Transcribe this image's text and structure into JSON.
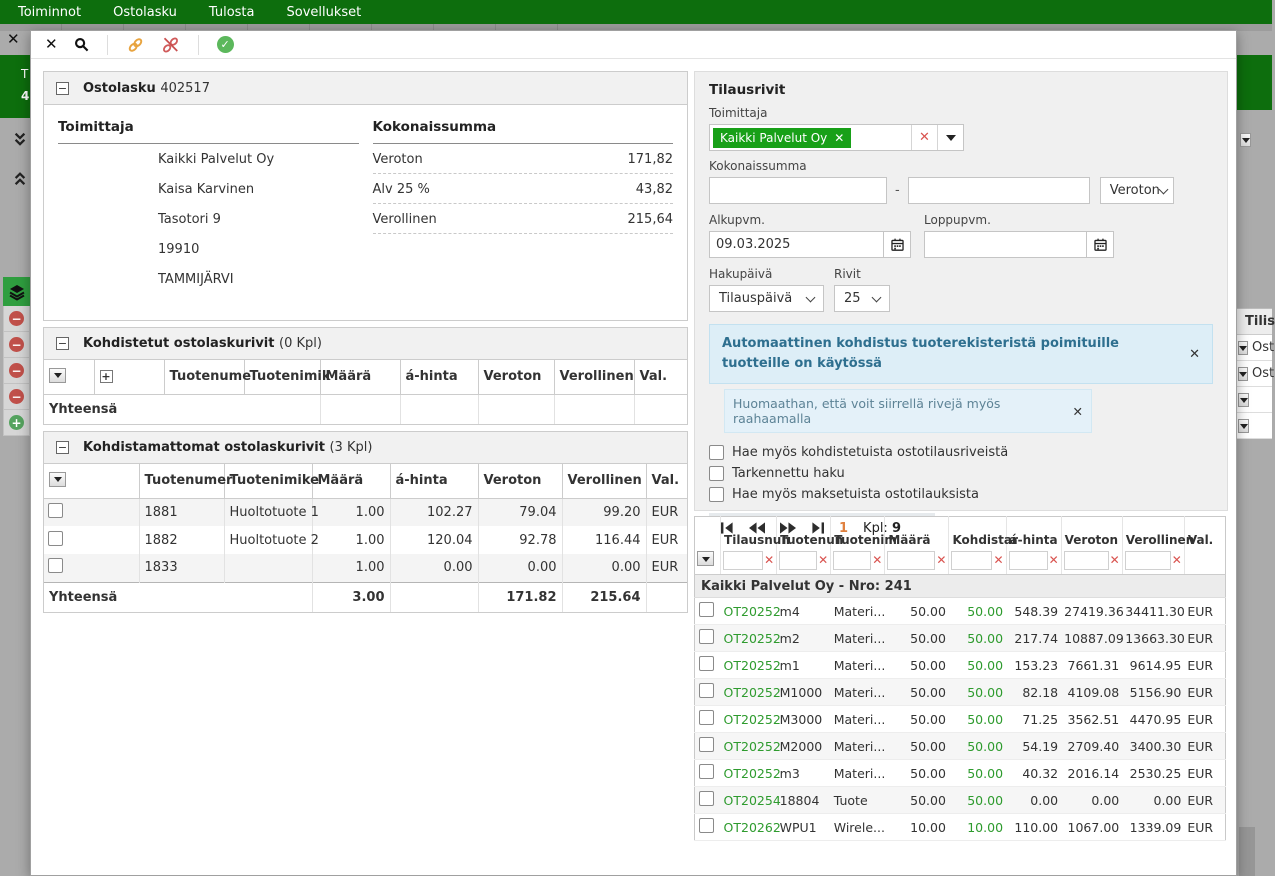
{
  "menubar": {
    "items": [
      "Toiminnot",
      "Ostolasku",
      "Tulosta",
      "Sovellukset"
    ]
  },
  "background": {
    "left_green_text": [
      "T",
      "4"
    ],
    "right_fragment": {
      "header": "Tilis",
      "rows": [
        "Ost",
        "Ost",
        "",
        ""
      ]
    }
  },
  "invoice": {
    "title": "Ostolasku",
    "number": "402517",
    "supplier_title": "Toimittaja",
    "supplier_lines": [
      "Kaikki Palvelut Oy",
      "Kaisa Karvinen",
      "Tasotori 9",
      "19910",
      "TAMMIJÄRVI"
    ],
    "totals_title": "Kokonaissumma",
    "totals": [
      {
        "label": "Veroton",
        "value": "171,82"
      },
      {
        "label": "Alv 25 %",
        "value": "43,82"
      },
      {
        "label": "Verollinen",
        "value": "215,64"
      }
    ]
  },
  "matched": {
    "title": "Kohdistetut ostolaskurivit",
    "count": "(0 Kpl)",
    "columns": [
      "Tuotenume",
      "Tuotenimik",
      "Määrä",
      "á-hinta",
      "Veroton",
      "Verollinen",
      "Val."
    ],
    "total_label": "Yhteensä"
  },
  "unmatched": {
    "title": "Kohdistamattomat ostolaskurivit",
    "count": "(3 Kpl)",
    "columns": [
      "Tuotenumer",
      "Tuotenimike",
      "Määrä",
      "á-hinta",
      "Veroton",
      "Verollinen",
      "Val."
    ],
    "rows": [
      [
        "1881",
        "Huoltotuote 1",
        "1.00",
        "102.27",
        "79.04",
        "99.20",
        "EUR"
      ],
      [
        "1882",
        "Huoltotuote 2",
        "1.00",
        "120.04",
        "92.78",
        "116.44",
        "EUR"
      ],
      [
        "1833",
        "",
        "1.00",
        "0.00",
        "0.00",
        "0.00",
        "EUR"
      ]
    ],
    "totals": {
      "label": "Yhteensä",
      "maara": "3.00",
      "veroton": "171.82",
      "verollinen": "215.64"
    }
  },
  "filters": {
    "title": "Tilausrivit",
    "supplier_label": "Toimittaja",
    "supplier_tag": "Kaikki Palvelut Oy",
    "sum_label": "Kokonaissumma",
    "sum_from": "",
    "sum_to": "",
    "range_separator": "-",
    "sum_type": "Veroton",
    "start_label": "Alkupvm.",
    "start_value": "09.03.2025",
    "end_label": "Loppupvm.",
    "end_value": "",
    "searchdate_label": "Hakupäivä",
    "searchdate_value": "Tilauspäivä",
    "rows_label": "Rivit",
    "rows_value": "25",
    "notice_primary": "Automaattinen kohdistus tuoterekisteristä poimituille tuotteille on käytössä",
    "notice_secondary": "Huomaathan, että voit siirrellä rivejä myös raahaamalla",
    "checkboxes": [
      "Hae myös kohdistetuista ostotilausriveistä",
      "Tarkennettu haku",
      "Hae myös maksetuista ostotilauksista"
    ],
    "pagination": {
      "current_page": "1",
      "count_label": "Kpl:",
      "count_value": "9"
    }
  },
  "orders": {
    "columns": [
      "Tilausnun",
      "Tuotenun",
      "Tuotenim",
      "Määrä",
      "Kohdistar",
      "á-hinta",
      "Veroton",
      "Verollinen",
      "Val."
    ],
    "group_header": "Kaikki Palvelut Oy - Nro: 241",
    "rows": [
      [
        "OT20252",
        "m4",
        "Materi...",
        "50.00",
        "50.00",
        "548.39",
        "27419.36",
        "34411.30",
        "EUR"
      ],
      [
        "OT20252",
        "m2",
        "Materi...",
        "50.00",
        "50.00",
        "217.74",
        "10887.09",
        "13663.30",
        "EUR"
      ],
      [
        "OT20252",
        "m1",
        "Materi...",
        "50.00",
        "50.00",
        "153.23",
        "7661.31",
        "9614.95",
        "EUR"
      ],
      [
        "OT20252",
        "M1000",
        "Materi...",
        "50.00",
        "50.00",
        "82.18",
        "4109.08",
        "5156.90",
        "EUR"
      ],
      [
        "OT20252",
        "M3000",
        "Materi...",
        "50.00",
        "50.00",
        "71.25",
        "3562.51",
        "4470.95",
        "EUR"
      ],
      [
        "OT20252",
        "M2000",
        "Materi...",
        "50.00",
        "50.00",
        "54.19",
        "2709.40",
        "3400.30",
        "EUR"
      ],
      [
        "OT20252",
        "m3",
        "Materi...",
        "50.00",
        "50.00",
        "40.32",
        "2016.14",
        "2530.25",
        "EUR"
      ],
      [
        "OT20254",
        "18804",
        "Tuote",
        "50.00",
        "50.00",
        "0.00",
        "0.00",
        "0.00",
        "EUR"
      ],
      [
        "OT20262",
        "WPU1",
        "Wirele...",
        "10.00",
        "10.00",
        "110.00",
        "1067.00",
        "1339.09",
        "EUR"
      ]
    ]
  },
  "colors": {
    "brand_green": "#0d6e0d",
    "tag_green": "#18a018",
    "link_green": "#2e9b2e",
    "danger_red": "#d9534f",
    "page_orange": "#e0813f",
    "notice_text": "#2e6f8f"
  }
}
